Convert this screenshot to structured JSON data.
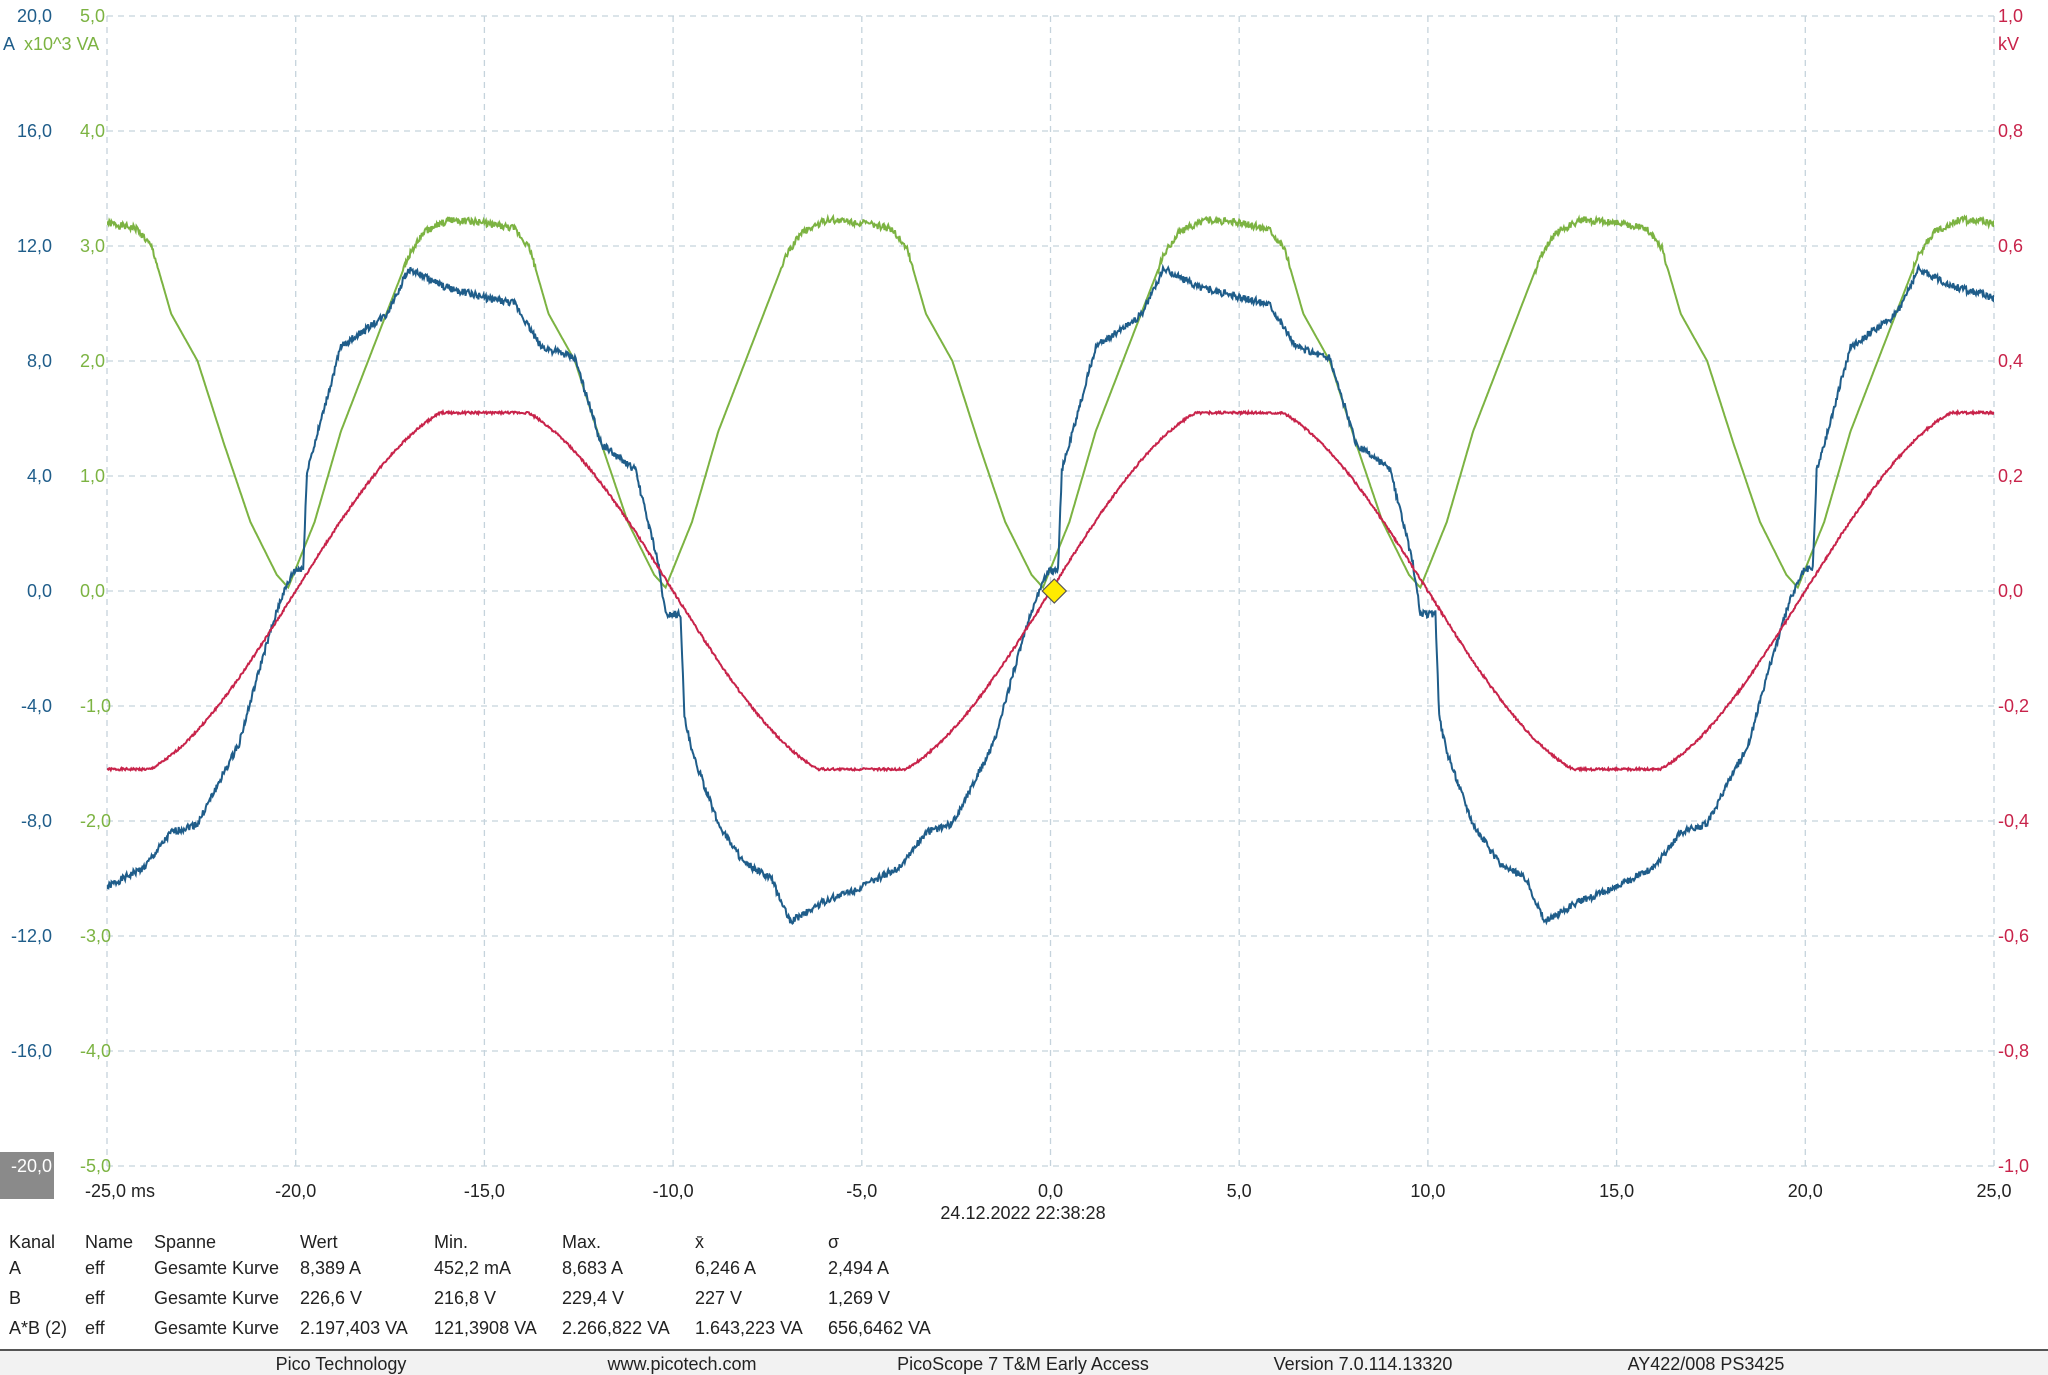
{
  "chart_data": {
    "type": "line",
    "xlabel_unit": "ms",
    "xlim": [
      -25,
      25
    ],
    "x_ticks": [
      "-25,0 ms",
      "-20,0",
      "-15,0",
      "-10,0",
      "-5,0",
      "0,0",
      "5,0",
      "10,0",
      "15,0",
      "20,0",
      "25,0"
    ],
    "grid": true,
    "timestamp": "24.12.2022 22:38:28",
    "axes": {
      "A": {
        "unit": "A",
        "ylim": [
          -20,
          20
        ],
        "ticks": [
          "20,0",
          "16,0",
          "12,0",
          "8,0",
          "4,0",
          "0,0",
          "-4,0",
          "-8,0",
          "-12,0",
          "-16,0",
          "-20,0"
        ],
        "color": "#1f5d8a"
      },
      "VA": {
        "unit": "x10^3 VA",
        "ylim": [
          -5,
          5
        ],
        "ticks": [
          "5,0",
          "4,0",
          "3,0",
          "2,0",
          "1,0",
          "0,0",
          "-1,0",
          "-2,0",
          "-3,0",
          "-4,0",
          "-5,0"
        ],
        "color": "#7cb342"
      },
      "kV": {
        "unit": "kV",
        "ylim": [
          -1,
          1
        ],
        "ticks": [
          "1,0",
          "0,8",
          "0,6",
          "0,4",
          "0,2",
          "0,0",
          "-0,2",
          "-0,4",
          "-0,6",
          "-0,8",
          "-1,0"
        ],
        "color": "#c8234a"
      }
    },
    "series": [
      {
        "channel": "A",
        "axis": "A",
        "color": "#1f5d8a",
        "period_ms": 20,
        "points": [
          [
            -20.4,
            -0.3
          ],
          [
            -20.05,
            0.7
          ],
          [
            -19.8,
            0.8
          ],
          [
            -19.7,
            4.2
          ],
          [
            -19.5,
            5.1
          ],
          [
            -18.8,
            8.5
          ],
          [
            -17.6,
            9.6
          ],
          [
            -17.0,
            11.2
          ],
          [
            -16.1,
            10.6
          ],
          [
            -15.0,
            10.2
          ],
          [
            -14.2,
            10.0
          ],
          [
            -13.5,
            8.5
          ],
          [
            -12.6,
            8.1
          ],
          [
            -11.9,
            5.1
          ],
          [
            -11.0,
            4.2
          ],
          [
            -10.4,
            1.0
          ],
          [
            -10.2,
            -0.8
          ],
          [
            -9.8,
            -0.8
          ],
          [
            -9.7,
            -4.4
          ],
          [
            -9.5,
            -5.6
          ],
          [
            -8.8,
            -8.1
          ],
          [
            -8.1,
            -9.5
          ],
          [
            -7.4,
            -10.0
          ],
          [
            -6.9,
            -11.5
          ],
          [
            -6.0,
            -10.8
          ],
          [
            -5.0,
            -10.3
          ],
          [
            -4.0,
            -9.6
          ],
          [
            -3.3,
            -8.4
          ],
          [
            -2.6,
            -8.1
          ],
          [
            -1.5,
            -5.3
          ],
          [
            -0.85,
            -2.2
          ],
          [
            -0.4,
            -0.3
          ]
        ]
      },
      {
        "channel": "B",
        "axis": "kV",
        "color": "#c8234a",
        "period_ms": 20,
        "amplitude": 0.31,
        "zero_cross_rising_ms": 0
      },
      {
        "channel": "A*B (2)",
        "axis": "VA",
        "color": "#7cb342",
        "period_ms": 10,
        "points": [
          [
            -20.2,
            0.03
          ],
          [
            -19.5,
            0.6
          ],
          [
            -18.8,
            1.39
          ],
          [
            -17.8,
            2.24
          ],
          [
            -17.0,
            2.92
          ],
          [
            -16.6,
            3.12
          ],
          [
            -15.9,
            3.23
          ],
          [
            -15.0,
            3.2
          ],
          [
            -14.2,
            3.15
          ],
          [
            -13.8,
            2.98
          ],
          [
            -13.3,
            2.41
          ],
          [
            -12.6,
            2.0
          ],
          [
            -11.9,
            1.28
          ],
          [
            -11.2,
            0.6
          ],
          [
            -10.5,
            0.14
          ],
          [
            -10.2,
            0.03
          ]
        ]
      }
    ],
    "marker": {
      "x": 0.1,
      "y": 0,
      "color": "#ffeb00"
    }
  },
  "table": {
    "headers": [
      "Kanal",
      "Name",
      "Spanne",
      "Wert",
      "Min.",
      "Max.",
      "x̄",
      "σ"
    ],
    "rows": [
      [
        "A",
        "eff",
        "Gesamte Kurve",
        "8,389 A",
        "452,2 mA",
        "8,683 A",
        "6,246 A",
        "2,494 A"
      ],
      [
        "B",
        "eff",
        "Gesamte Kurve",
        "226,6 V",
        "216,8 V",
        "229,4 V",
        "227 V",
        "1,269 V"
      ],
      [
        "A*B (2)",
        "eff",
        "Gesamte Kurve",
        "2.197,403 VA",
        "121,3908 VA",
        "2.266,822 VA",
        "1.643,223 VA",
        "656,6462 VA"
      ]
    ]
  },
  "footer": [
    "Pico Technology",
    "www.picotech.com",
    "PicoScope 7 T&M Early Access",
    "Version 7.0.114.13320",
    "AY422/008 PS3425"
  ]
}
